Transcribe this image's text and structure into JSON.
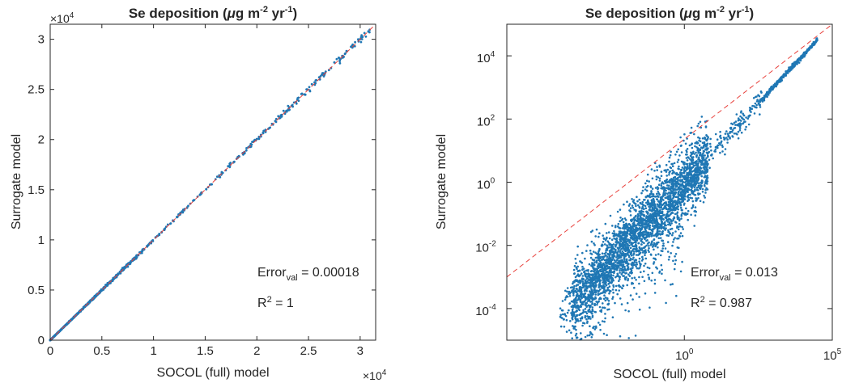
{
  "chart_data": [
    {
      "type": "scatter",
      "title": "Se deposition (μg m⁻² yr⁻¹)",
      "title_parts": {
        "prefix": "Se deposition (",
        "mu": "μ",
        "g": "g m",
        "exp1": "-2",
        "yr": " yr",
        "exp2": "-1",
        "close": ")"
      },
      "xlabel": "SOCOL (full) model",
      "ylabel": "Surrogate model",
      "x_scale": "linear",
      "y_scale": "linear",
      "xlim": [
        0,
        31500
      ],
      "ylim": [
        0,
        31500
      ],
      "xticks": [
        0,
        5000,
        10000,
        15000,
        20000,
        25000,
        30000
      ],
      "xtick_labels": [
        "0",
        "0.5",
        "1",
        "1.5",
        "2",
        "2.5",
        "3"
      ],
      "yticks": [
        0,
        5000,
        10000,
        15000,
        20000,
        25000,
        30000
      ],
      "ytick_labels": [
        "0",
        "0.5",
        "1",
        "1.5",
        "2",
        "2.5",
        "3"
      ],
      "x_multiplier": {
        "base": "×10",
        "exp": "4"
      },
      "y_multiplier": {
        "base": "×10",
        "exp": "4"
      },
      "reference_line": {
        "style": "dashed",
        "color": "#e8413c",
        "from": [
          0,
          0
        ],
        "to": [
          31500,
          31500
        ]
      },
      "point_color": "#1f77b4",
      "points_sample": [
        [
          500,
          500
        ],
        [
          2000,
          2010
        ],
        [
          5200,
          5180
        ],
        [
          7000,
          7050
        ],
        [
          9500,
          9480
        ],
        [
          10200,
          10250
        ],
        [
          12600,
          12700
        ],
        [
          15100,
          15050
        ],
        [
          17400,
          17420
        ],
        [
          20000,
          20050
        ],
        [
          22400,
          22300
        ],
        [
          24600,
          24500
        ],
        [
          26100,
          26000
        ],
        [
          27500,
          27700
        ],
        [
          29200,
          29300
        ],
        [
          30100,
          30200
        ],
        [
          30900,
          30700
        ]
      ],
      "annotations": [
        {
          "name": "error",
          "text": "Error",
          "sub": "val",
          "value": " = 0.00018"
        },
        {
          "name": "r2",
          "text": "R",
          "sup": "2",
          "value": " = 1"
        }
      ],
      "grid": false,
      "box": true
    },
    {
      "type": "scatter",
      "title": "Se deposition (μg m⁻² yr⁻¹)",
      "title_parts": {
        "prefix": "Se deposition (",
        "mu": "μ",
        "g": "g m",
        "exp1": "-2",
        "yr": " yr",
        "exp2": "-1",
        "close": ")"
      },
      "xlabel": "SOCOL (full) model",
      "ylabel": "Surrogate model",
      "x_scale": "log",
      "y_scale": "log",
      "xlim": [
        1e-06,
        100000
      ],
      "ylim": [
        1e-05,
        100000
      ],
      "xticks": [
        {
          "value": 1,
          "base": "10",
          "exp": "0"
        },
        {
          "value": 100000,
          "base": "10",
          "exp": "5"
        }
      ],
      "yticks": [
        {
          "value": 0.0001,
          "base": "10",
          "exp": "-4"
        },
        {
          "value": 0.01,
          "base": "10",
          "exp": "-2"
        },
        {
          "value": 1,
          "base": "10",
          "exp": "0"
        },
        {
          "value": 100,
          "base": "10",
          "exp": "2"
        },
        {
          "value": 10000,
          "base": "10",
          "exp": "4"
        }
      ],
      "reference_line": {
        "style": "dashed",
        "color": "#e8413c",
        "from": [
          1e-06,
          0.001
        ],
        "to": [
          100000,
          100000
        ]
      },
      "point_color": "#1f77b4",
      "annotations": [
        {
          "name": "error",
          "text": "Error",
          "sub": "val",
          "value": " = 0.013"
        },
        {
          "name": "r2",
          "text": "R",
          "sup": "2",
          "value": " = 0.987"
        }
      ],
      "grid": false,
      "box": true
    }
  ]
}
